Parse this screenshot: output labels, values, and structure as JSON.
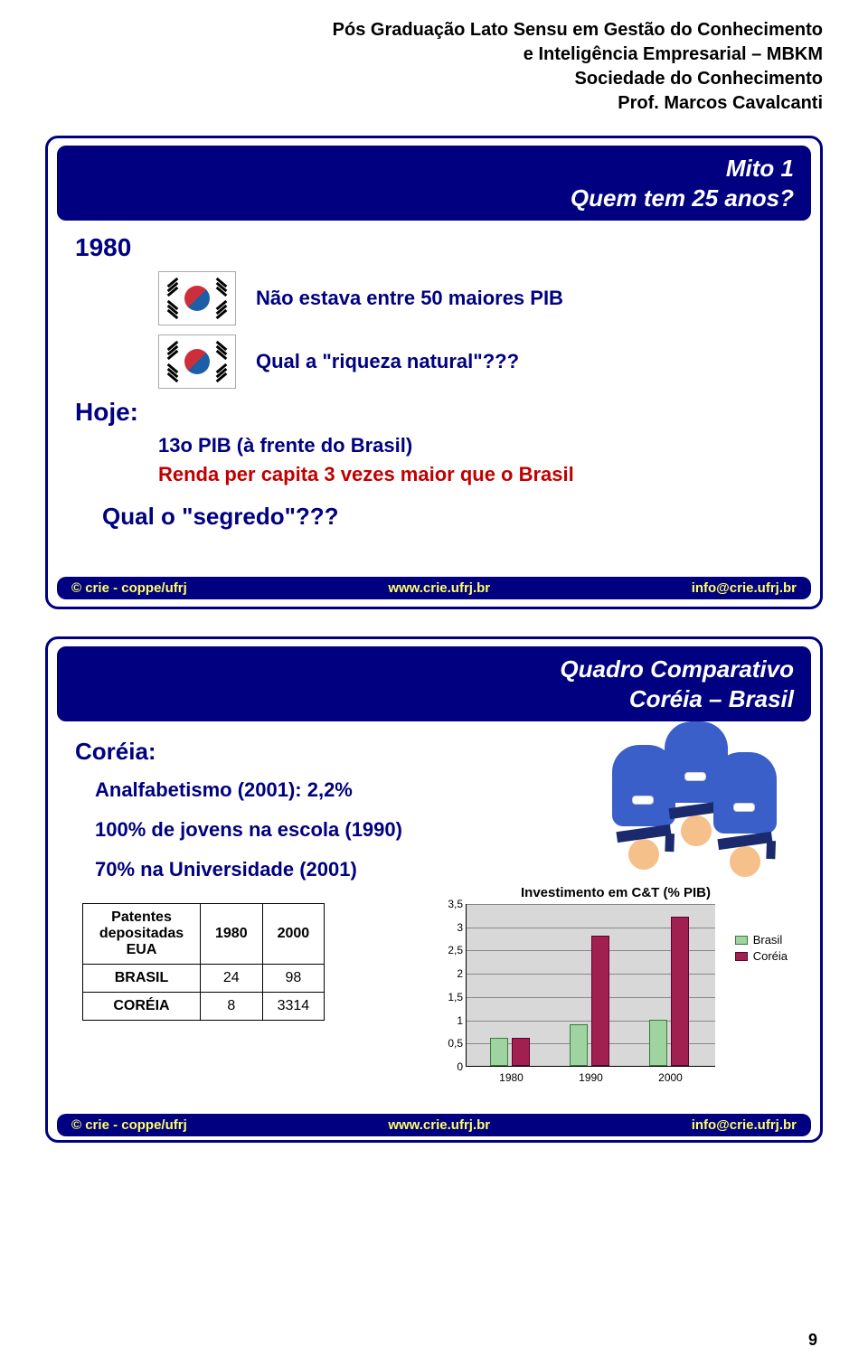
{
  "header": {
    "line1": "Pós Graduação Lato Sensu em Gestão do Conhecimento",
    "line2": "e Inteligência Empresarial – MBKM",
    "line3": "Sociedade do Conhecimento",
    "line4": "Prof. Marcos Cavalcanti"
  },
  "slide1": {
    "title_l1": "Mito 1",
    "title_l2": "Quem tem 25 anos?",
    "year": "1980",
    "line_a": "Não estava entre 50 maiores PIB",
    "line_b": "Qual a \"riqueza natural\"???",
    "hoje": "Hoje:",
    "line_c": "13o PIB (à frente do Brasil)",
    "line_d": "Renda per capita 3 vezes maior que o Brasil",
    "qseg": "Qual o \"segredo\"???"
  },
  "footer": {
    "left": "© crie - coppe/ufrj",
    "center": "www.crie.ufrj.br",
    "right": "info@crie.ufrj.br"
  },
  "slide2": {
    "title_l1": "Quadro Comparativo",
    "title_l2": "Coréia – Brasil",
    "coreia": "Coréia:",
    "b1": "Analfabetismo (2001): 2,2%",
    "b2": "100% de jovens na escola (1990)",
    "b3": "70% na Universidade (2001)",
    "table": {
      "h0": "Patentes depositadas EUA",
      "h1": "1980",
      "h2": "2000",
      "r1c0": "BRASIL",
      "r1c1": "24",
      "r1c2": "98",
      "r2c0": "CORÉIA",
      "r2c1": "8",
      "r2c2": "3314"
    },
    "chart": {
      "title": "Investimento em C&T (% PIB)",
      "ylabels": [
        "0",
        "0,5",
        "1",
        "1,5",
        "2",
        "2,5",
        "3",
        "3,5"
      ],
      "ymax": 3.5,
      "xlabels": [
        "1980",
        "1990",
        "2000"
      ],
      "brasil": [
        0.6,
        0.9,
        1.0
      ],
      "coreia": [
        0.6,
        2.8,
        3.2
      ],
      "colors": {
        "brasil": "#9fd39f",
        "coreia": "#a02050",
        "bg": "#d8d8d8"
      },
      "legend_b": "Brasil",
      "legend_c": "Coréia"
    }
  },
  "page_number": "9"
}
